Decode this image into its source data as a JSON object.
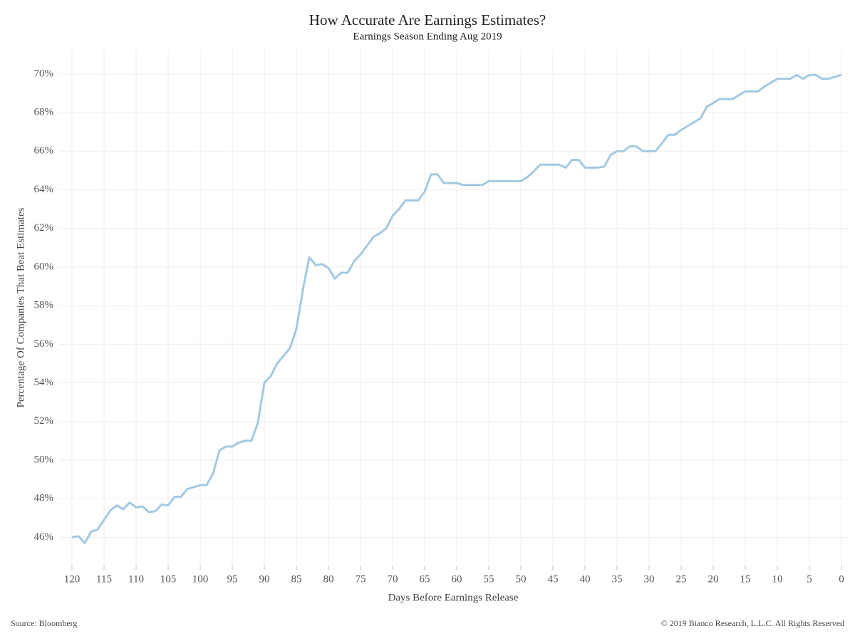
{
  "chart_data": {
    "type": "line",
    "title": "How Accurate Are Earnings Estimates?",
    "subtitle": "Earnings Season Ending Aug 2019",
    "xlabel": "Days Before Earnings Release",
    "ylabel": "Percentage Of Companies That Beat Estimates",
    "source": "Source: Bloomberg",
    "copyright": "© 2019 Bianco Research, L.L.C. All Rights Reserved",
    "x": [
      120,
      119,
      118,
      117,
      116,
      115,
      114,
      113,
      112,
      111,
      110,
      109,
      108,
      107,
      106,
      105,
      104,
      103,
      102,
      101,
      100,
      99,
      98,
      97,
      96,
      95,
      94,
      93,
      92,
      91,
      90,
      89,
      88,
      87,
      86,
      85,
      84,
      83,
      82,
      81,
      80,
      79,
      78,
      77,
      76,
      75,
      74,
      73,
      72,
      71,
      70,
      69,
      68,
      67,
      66,
      65,
      64,
      63,
      62,
      61,
      60,
      59,
      58,
      57,
      56,
      55,
      54,
      53,
      52,
      51,
      50,
      49,
      48,
      47,
      46,
      45,
      44,
      43,
      42,
      41,
      40,
      39,
      38,
      37,
      36,
      35,
      34,
      33,
      32,
      31,
      30,
      29,
      28,
      27,
      26,
      25,
      24,
      23,
      22,
      21,
      20,
      19,
      18,
      17,
      16,
      15,
      14,
      13,
      12,
      11,
      10,
      9,
      8,
      7,
      6,
      5,
      4,
      3,
      2,
      1,
      0
    ],
    "values": [
      46.0,
      46.05,
      45.7,
      46.3,
      46.4,
      46.9,
      47.4,
      47.65,
      47.45,
      47.8,
      47.55,
      47.6,
      47.3,
      47.35,
      47.7,
      47.65,
      48.1,
      48.1,
      48.5,
      48.6,
      48.7,
      48.7,
      49.3,
      50.5,
      50.7,
      50.7,
      50.9,
      51.0,
      51.0,
      51.95,
      54.0,
      54.35,
      55.0,
      55.4,
      55.8,
      56.8,
      58.8,
      60.5,
      60.1,
      60.15,
      59.95,
      59.4,
      59.7,
      59.7,
      60.3,
      60.65,
      61.1,
      61.55,
      61.75,
      62.0,
      62.65,
      63.0,
      63.45,
      63.45,
      63.45,
      63.9,
      64.8,
      64.8,
      64.35,
      64.35,
      64.35,
      64.25,
      64.25,
      64.25,
      64.25,
      64.45,
      64.45,
      64.45,
      64.45,
      64.45,
      64.45,
      64.65,
      64.95,
      65.3,
      65.3,
      65.3,
      65.3,
      65.15,
      65.55,
      65.55,
      65.15,
      65.15,
      65.15,
      65.2,
      65.8,
      66.0,
      66.0,
      66.25,
      66.25,
      66.0,
      66.0,
      66.0,
      66.4,
      66.85,
      66.85,
      67.1,
      67.3,
      67.5,
      67.7,
      68.3,
      68.5,
      68.7,
      68.7,
      68.7,
      68.9,
      69.1,
      69.1,
      69.1,
      69.35,
      69.55,
      69.75,
      69.75,
      69.75,
      69.95,
      69.75,
      69.95,
      69.95,
      69.75,
      69.75,
      69.85,
      69.95
    ],
    "color": "#a3c9e2",
    "xlim": [
      122,
      -1
    ],
    "xticks": [
      120,
      115,
      110,
      105,
      100,
      95,
      90,
      85,
      80,
      75,
      70,
      65,
      60,
      55,
      50,
      45,
      40,
      35,
      30,
      25,
      20,
      15,
      10,
      5,
      0
    ],
    "ylim": [
      44.5,
      71.25
    ],
    "yticks": [
      {
        "value": 46,
        "label": "46%"
      },
      {
        "value": 48,
        "label": "48%"
      },
      {
        "value": 50,
        "label": "50%"
      },
      {
        "value": 52,
        "label": "52%"
      },
      {
        "value": 54,
        "label": "54%"
      },
      {
        "value": 56,
        "label": "56%"
      },
      {
        "value": 58,
        "label": "58%"
      },
      {
        "value": 60,
        "label": "60%"
      },
      {
        "value": 62,
        "label": "62%"
      },
      {
        "value": 64,
        "label": "64%"
      },
      {
        "value": 66,
        "label": "66%"
      },
      {
        "value": 68,
        "label": "68%"
      },
      {
        "value": 70,
        "label": "70%"
      }
    ],
    "grid": true
  }
}
